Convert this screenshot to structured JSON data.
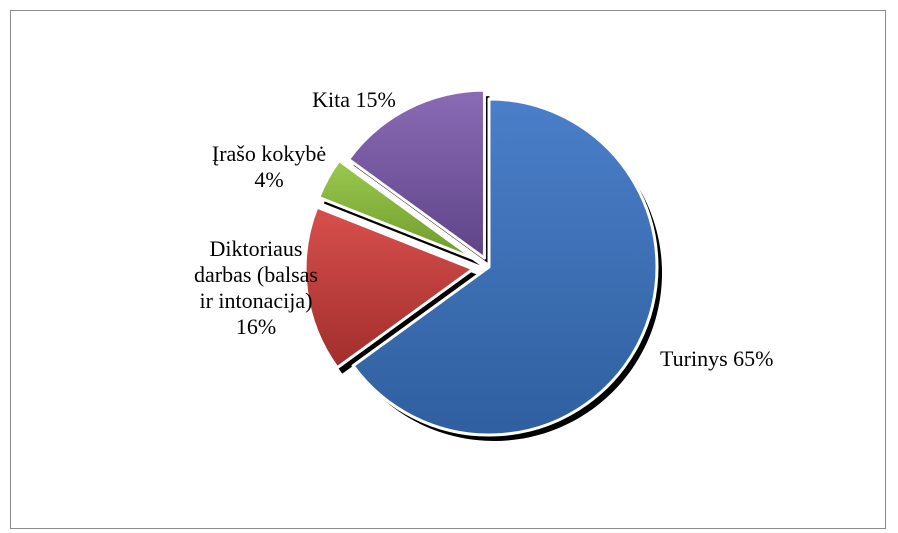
{
  "chart_data": {
    "type": "pie",
    "exploded": true,
    "slices": [
      {
        "label_lines": [
          "Turinys 65%"
        ],
        "name": "Turinys",
        "value": 65,
        "color": "#4a7fc9",
        "color_dark": "#2f5f9f"
      },
      {
        "label_lines": [
          "Diktoriaus",
          "darbas (balsas",
          "ir intonacija)",
          "16%"
        ],
        "name": "Diktoriaus darbas (balsas ir intonacija)",
        "value": 16,
        "color": "#d8504d",
        "color_dark": "#a12e2c"
      },
      {
        "label_lines": [
          "Įrašo kokybė",
          "4%"
        ],
        "name": "Įrašo kokybė",
        "value": 4,
        "color": "#9bc94f",
        "color_dark": "#6f9a2b"
      },
      {
        "label_lines": [
          "Kita 15%"
        ],
        "name": "Kita 15%",
        "value": 15,
        "color": "#8a6bb5",
        "color_dark": "#5f4488"
      }
    ]
  }
}
